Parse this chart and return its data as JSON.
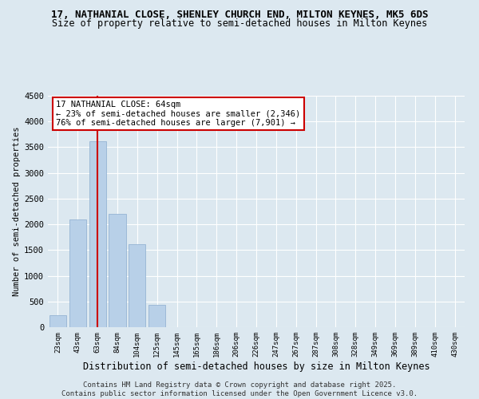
{
  "title": "17, NATHANIAL CLOSE, SHENLEY CHURCH END, MILTON KEYNES, MK5 6DS",
  "subtitle": "Size of property relative to semi-detached houses in Milton Keynes",
  "xlabel": "Distribution of semi-detached houses by size in Milton Keynes",
  "ylabel": "Number of semi-detached properties",
  "property_label": "17 NATHANIAL CLOSE: 64sqm",
  "annotation_smaller": "← 23% of semi-detached houses are smaller (2,346)",
  "annotation_larger": "76% of semi-detached houses are larger (7,901) →",
  "property_bin_index": 2,
  "categories": [
    "23sqm",
    "43sqm",
    "63sqm",
    "84sqm",
    "104sqm",
    "125sqm",
    "145sqm",
    "165sqm",
    "186sqm",
    "206sqm",
    "226sqm",
    "247sqm",
    "267sqm",
    "287sqm",
    "308sqm",
    "328sqm",
    "349sqm",
    "369sqm",
    "389sqm",
    "410sqm",
    "430sqm"
  ],
  "values": [
    230,
    2100,
    3620,
    2200,
    1620,
    430,
    0,
    0,
    0,
    0,
    0,
    0,
    0,
    0,
    0,
    0,
    0,
    0,
    0,
    0,
    0
  ],
  "bar_color": "#b8d0e8",
  "property_line_color": "#cc0000",
  "ylim": [
    0,
    4500
  ],
  "yticks": [
    0,
    500,
    1000,
    1500,
    2000,
    2500,
    3000,
    3500,
    4000,
    4500
  ],
  "background_color": "#dce8f0",
  "plot_bg_color": "#dce8f0",
  "grid_color": "#ffffff",
  "footer_text": "Contains HM Land Registry data © Crown copyright and database right 2025.\nContains public sector information licensed under the Open Government Licence v3.0.",
  "title_fontsize": 9,
  "subtitle_fontsize": 8.5,
  "xlabel_fontsize": 8.5,
  "ylabel_fontsize": 7.5,
  "annotation_fontsize": 7.5,
  "footer_fontsize": 6.5
}
